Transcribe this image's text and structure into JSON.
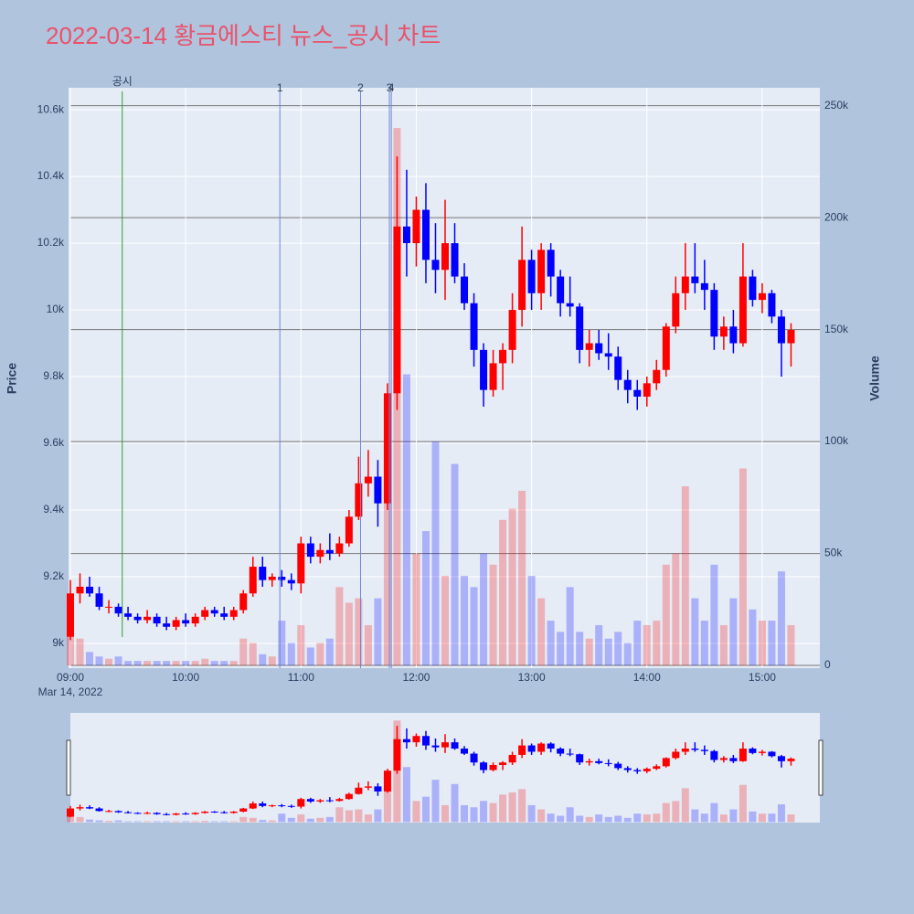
{
  "chart_data": {
    "type": "candlestick",
    "title": "2022-03-14 황금에스티 뉴스_공시 차트",
    "y_label": "Price",
    "y2_label": "Volume",
    "x_date_label": "Mar 14, 2022",
    "up_color": "#ff0000",
    "down_color": "#0000ff",
    "x": [
      "09:00",
      "09:05",
      "09:10",
      "09:15",
      "09:20",
      "09:25",
      "09:30",
      "09:35",
      "09:40",
      "09:45",
      "09:50",
      "09:55",
      "10:00",
      "10:05",
      "10:10",
      "10:15",
      "10:20",
      "10:25",
      "10:30",
      "10:35",
      "10:40",
      "10:45",
      "10:50",
      "10:55",
      "11:00",
      "11:05",
      "11:10",
      "11:15",
      "11:20",
      "11:25",
      "11:30",
      "11:35",
      "11:40",
      "11:45",
      "11:50",
      "11:55",
      "12:00",
      "12:05",
      "12:10",
      "12:15",
      "12:20",
      "12:25",
      "12:30",
      "12:35",
      "12:40",
      "12:45",
      "12:50",
      "12:55",
      "13:00",
      "13:05",
      "13:10",
      "13:15",
      "13:20",
      "13:25",
      "13:30",
      "13:35",
      "13:40",
      "13:45",
      "13:50",
      "13:55",
      "14:00",
      "14:05",
      "14:10",
      "14:15",
      "14:20",
      "14:25",
      "14:30",
      "14:35",
      "14:40",
      "14:45",
      "14:50",
      "14:55",
      "15:00",
      "15:05",
      "15:10",
      "15:15"
    ],
    "open": [
      9020,
      9150,
      9170,
      9150,
      9110,
      9110,
      9090,
      9080,
      9070,
      9080,
      9060,
      9050,
      9070,
      9060,
      9080,
      9100,
      9090,
      9080,
      9100,
      9150,
      9230,
      9190,
      9200,
      9190,
      9180,
      9300,
      9260,
      9280,
      9270,
      9300,
      9380,
      9480,
      9500,
      9420,
      9750,
      10250,
      10200,
      10300,
      10150,
      10120,
      10200,
      10100,
      10020,
      9880,
      9760,
      9840,
      9880,
      10000,
      10150,
      10050,
      10180,
      10100,
      10020,
      10010,
      9880,
      9900,
      9870,
      9860,
      9790,
      9760,
      9740,
      9780,
      9820,
      9950,
      10050,
      10100,
      10080,
      10060,
      9920,
      9950,
      9900,
      10100,
      10030,
      10050,
      9980,
      9900
    ],
    "high": [
      9190,
      9210,
      9200,
      9170,
      9130,
      9120,
      9110,
      9090,
      9100,
      9090,
      9080,
      9080,
      9090,
      9090,
      9110,
      9110,
      9110,
      9110,
      9160,
      9260,
      9260,
      9210,
      9220,
      9210,
      9320,
      9320,
      9300,
      9330,
      9320,
      9400,
      9560,
      9580,
      9550,
      9780,
      10460,
      10420,
      10340,
      10380,
      10260,
      10330,
      10260,
      10140,
      10050,
      9900,
      9880,
      9900,
      10050,
      10250,
      10180,
      10200,
      10200,
      10120,
      10100,
      10020,
      9940,
      9940,
      9930,
      9890,
      9820,
      9790,
      9800,
      9850,
      9960,
      10100,
      10200,
      10200,
      10150,
      10080,
      9980,
      10000,
      10200,
      10120,
      10080,
      10060,
      10000,
      9960
    ],
    "low": [
      9010,
      9120,
      9140,
      9100,
      9090,
      9080,
      9070,
      9060,
      9060,
      9050,
      9040,
      9040,
      9050,
      9050,
      9070,
      9080,
      9070,
      9070,
      9090,
      9140,
      9170,
      9170,
      9170,
      9160,
      9150,
      9240,
      9240,
      9250,
      9260,
      9290,
      9370,
      9440,
      9350,
      9400,
      9700,
      10100,
      10130,
      10080,
      10050,
      10030,
      10080,
      10000,
      9830,
      9710,
      9740,
      9760,
      9840,
      9950,
      10000,
      10000,
      10040,
      9980,
      9980,
      9840,
      9830,
      9850,
      9820,
      9760,
      9720,
      9700,
      9710,
      9760,
      9800,
      9930,
      10000,
      10050,
      10000,
      9880,
      9880,
      9870,
      9890,
      10010,
      9990,
      9960,
      9800,
      9830
    ],
    "close": [
      9150,
      9170,
      9150,
      9110,
      9110,
      9090,
      9080,
      9070,
      9080,
      9060,
      9050,
      9070,
      9060,
      9080,
      9100,
      9090,
      9080,
      9100,
      9150,
      9230,
      9190,
      9200,
      9190,
      9180,
      9300,
      9260,
      9280,
      9270,
      9300,
      9380,
      9480,
      9500,
      9420,
      9750,
      10250,
      10200,
      10300,
      10150,
      10120,
      10200,
      10100,
      10020,
      9880,
      9760,
      9840,
      9880,
      10000,
      10150,
      10050,
      10180,
      10100,
      10020,
      10010,
      9880,
      9900,
      9870,
      9860,
      9790,
      9760,
      9740,
      9780,
      9820,
      9950,
      10050,
      10100,
      10080,
      10060,
      9920,
      9950,
      9900,
      10100,
      10030,
      10050,
      9980,
      9900,
      9940
    ],
    "volume": [
      15000,
      12000,
      6000,
      4000,
      3000,
      4000,
      2000,
      2000,
      2000,
      2000,
      2000,
      2000,
      2000,
      2000,
      3000,
      2000,
      2000,
      2000,
      12000,
      10000,
      5000,
      4000,
      20000,
      10000,
      18000,
      8000,
      10000,
      12000,
      35000,
      28000,
      30000,
      18000,
      30000,
      120000,
      240000,
      130000,
      50000,
      60000,
      100000,
      40000,
      90000,
      40000,
      35000,
      50000,
      45000,
      65000,
      70000,
      78000,
      40000,
      30000,
      20000,
      15000,
      35000,
      15000,
      12000,
      18000,
      12000,
      15000,
      10000,
      20000,
      18000,
      20000,
      45000,
      50000,
      80000,
      30000,
      20000,
      45000,
      18000,
      30000,
      88000,
      25000,
      20000,
      20000,
      42000,
      18000
    ],
    "xlim": [
      "09:00",
      "15:30"
    ],
    "xticks": [
      {
        "value": "09:00",
        "label": "09:00"
      },
      {
        "value": "10:00",
        "label": "10:00"
      },
      {
        "value": "11:00",
        "label": "11:00"
      },
      {
        "value": "12:00",
        "label": "12:00"
      },
      {
        "value": "13:00",
        "label": "13:00"
      },
      {
        "value": "14:00",
        "label": "14:00"
      },
      {
        "value": "15:00",
        "label": "15:00"
      }
    ],
    "ylim": [
      8926,
      10666
    ],
    "yticks": [
      {
        "value": 9000,
        "label": "9k"
      },
      {
        "value": 9200,
        "label": "9.2k"
      },
      {
        "value": 9400,
        "label": "9.4k"
      },
      {
        "value": 9600,
        "label": "9.6k"
      },
      {
        "value": 9800,
        "label": "9.8k"
      },
      {
        "value": 10000,
        "label": "10k"
      },
      {
        "value": 10200,
        "label": "10.2k"
      },
      {
        "value": 10400,
        "label": "10.4k"
      },
      {
        "value": 10600,
        "label": "10.6k"
      }
    ],
    "y2lim": [
      -1200,
      258000
    ],
    "y2ticks": [
      0,
      {
        "value": 50000,
        "label": "50k"
      },
      {
        "value": 100000,
        "label": "100k"
      },
      {
        "value": 150000,
        "label": "150k"
      },
      {
        "value": 200000,
        "label": "200k"
      },
      {
        "value": 250000,
        "label": "250k"
      }
    ],
    "annotations": [
      {
        "x": "09:27",
        "label": "공시",
        "color": "#2ca02c"
      },
      {
        "x": "10:49",
        "label": "1",
        "color": "#6f86d6"
      },
      {
        "x": "11:31",
        "label": "2",
        "color": "#6f86d6"
      },
      {
        "x": "11:46",
        "label": "3",
        "color": "#6f86d6"
      },
      {
        "x": "11:47",
        "label": "4",
        "color": "#6f86d6"
      }
    ]
  }
}
